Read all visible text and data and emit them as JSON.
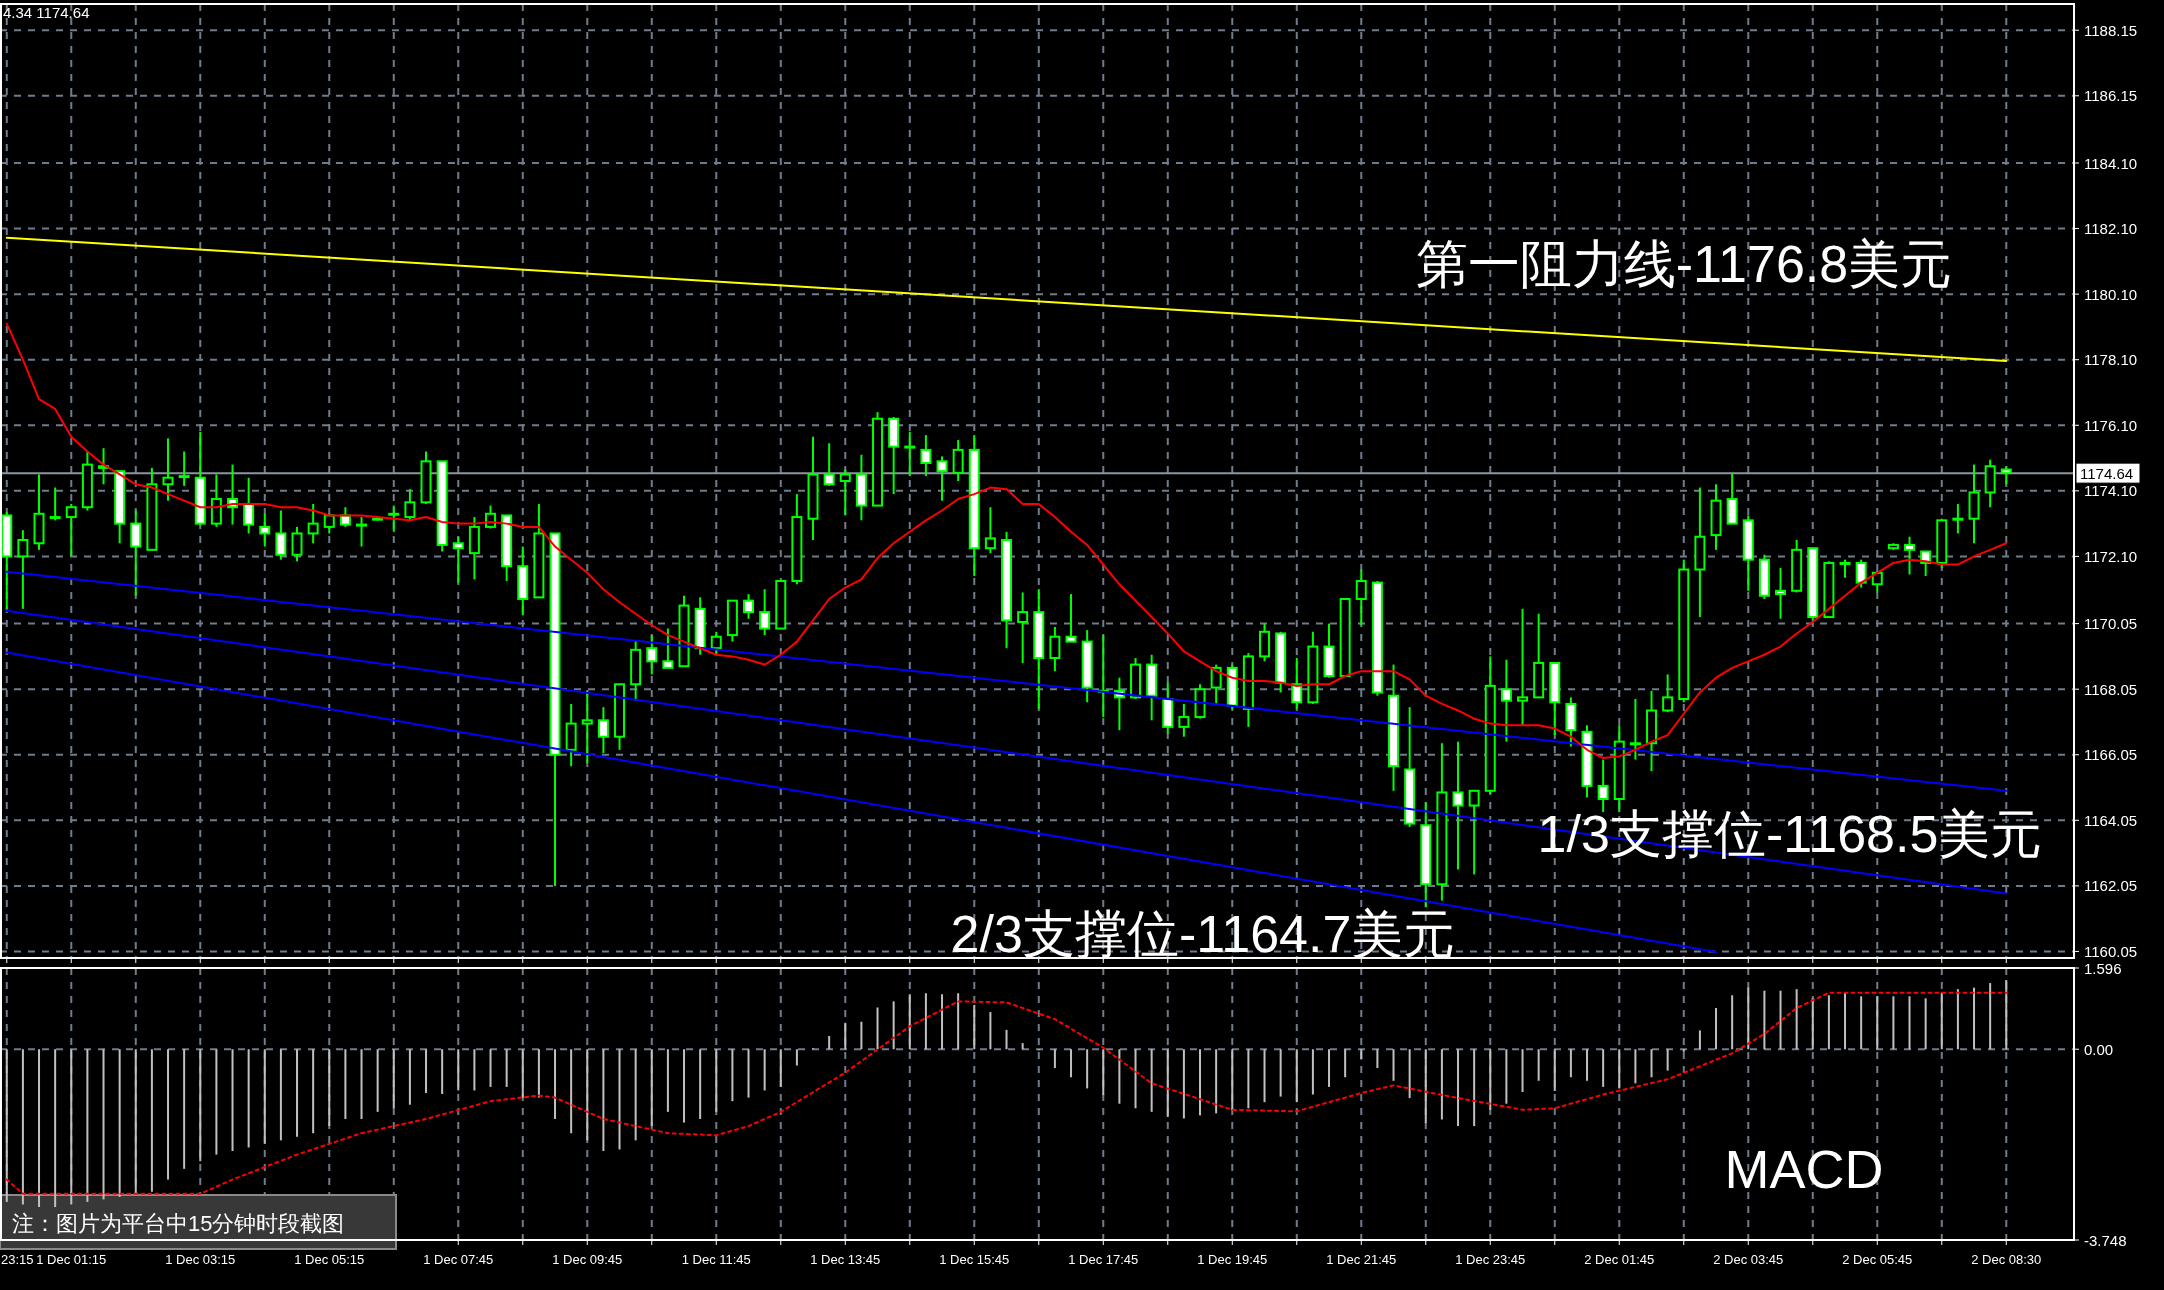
{
  "chart_data": [
    {
      "type": "candlestick",
      "grid": true,
      "categories": [
        null,
        null,
        null,
        null,
        null,
        null,
        null,
        null,
        null,
        null,
        null,
        null,
        null,
        null,
        null,
        null,
        null,
        null,
        null,
        null,
        null,
        null,
        null,
        null,
        null,
        null,
        null,
        null,
        null,
        null,
        null,
        null,
        null,
        null,
        null,
        null,
        null,
        null,
        null,
        null,
        null,
        null,
        null,
        null,
        null,
        null,
        null,
        null,
        null,
        null,
        null,
        null,
        null,
        null,
        null,
        null,
        null,
        null,
        null,
        null,
        null,
        null,
        null,
        null,
        null,
        null,
        null,
        null,
        null,
        null,
        null,
        null,
        null,
        null,
        null,
        null,
        null,
        null,
        null,
        null,
        null,
        null,
        null,
        null,
        null,
        null,
        null,
        null,
        null,
        null,
        null,
        null,
        null,
        null,
        null,
        null,
        null,
        null,
        null,
        null,
        null,
        null,
        null,
        null,
        null,
        null,
        null,
        null,
        null,
        null,
        null,
        null,
        null,
        null,
        null,
        null,
        null,
        null,
        null,
        null,
        null,
        null,
        null,
        null,
        null
      ],
      "ylim": [
        1159.85,
        1188.95
      ],
      "yticks": [
        {
          "value": 1160.05,
          "label": "1160.05"
        },
        {
          "value": 1162.05,
          "label": "1162.05"
        },
        {
          "value": 1164.05,
          "label": "1164.05"
        },
        {
          "value": 1166.05,
          "label": "1166.05"
        },
        {
          "value": 1168.05,
          "label": "1168.05"
        },
        {
          "value": 1170.05,
          "label": "1170.05"
        },
        {
          "value": 1172.1,
          "label": "1172.10"
        },
        {
          "value": 1174.1,
          "label": "1174.10"
        },
        {
          "value": 1176.1,
          "label": "1176.10"
        },
        {
          "value": 1178.1,
          "label": "1178.10"
        },
        {
          "value": 1180.1,
          "label": "1180.10"
        },
        {
          "value": 1182.1,
          "label": "1182.10"
        },
        {
          "value": 1184.1,
          "label": "1184.10"
        },
        {
          "value": 1186.15,
          "label": "1186.15"
        },
        {
          "value": 1188.15,
          "label": "1188.15"
        }
      ],
      "series": [
        {
          "type": "line",
          "color": "#ffff00",
          "values": [
            1181.82,
            null,
            null,
            null,
            null,
            null,
            null,
            null,
            null,
            null,
            null,
            null,
            null,
            null,
            null,
            null,
            null,
            null,
            null,
            null,
            null,
            null,
            null,
            null,
            null,
            null,
            null,
            null,
            null,
            null,
            null,
            null,
            null,
            null,
            null,
            null,
            null,
            null,
            null,
            null,
            null,
            null,
            null,
            null,
            null,
            null,
            null,
            null,
            null,
            null,
            null,
            null,
            null,
            null,
            null,
            null,
            null,
            null,
            null,
            null,
            null,
            null,
            null,
            null,
            null,
            null,
            null,
            null,
            null,
            null,
            null,
            null,
            null,
            null,
            null,
            null,
            null,
            null,
            null,
            null,
            null,
            null,
            null,
            null,
            null,
            null,
            null,
            null,
            null,
            null,
            null,
            null,
            null,
            null,
            null,
            null,
            null,
            null,
            null,
            null,
            null,
            null,
            null,
            null,
            null,
            null,
            null,
            null,
            null,
            null,
            null,
            null,
            null,
            null,
            null,
            null,
            null,
            null,
            null,
            null,
            null,
            null,
            null,
            null,
            1178.06
          ]
        },
        {
          "type": "line",
          "color": "#0000ff",
          "values": [
            1171.63,
            null,
            null,
            null,
            null,
            null,
            null,
            null,
            null,
            null,
            null,
            null,
            null,
            null,
            null,
            null,
            null,
            null,
            null,
            null,
            null,
            null,
            null,
            null,
            null,
            null,
            null,
            null,
            null,
            null,
            null,
            null,
            null,
            null,
            null,
            null,
            null,
            null,
            null,
            null,
            null,
            null,
            null,
            null,
            null,
            null,
            null,
            null,
            null,
            null,
            null,
            null,
            null,
            null,
            null,
            null,
            null,
            null,
            null,
            null,
            null,
            null,
            null,
            null,
            null,
            null,
            null,
            null,
            null,
            null,
            null,
            null,
            null,
            null,
            null,
            null,
            null,
            null,
            null,
            null,
            null,
            null,
            null,
            null,
            null,
            null,
            null,
            null,
            null,
            null,
            null,
            null,
            null,
            null,
            null,
            null,
            null,
            null,
            null,
            null,
            null,
            null,
            null,
            null,
            null,
            null,
            null,
            null,
            null,
            null,
            null,
            null,
            null,
            null,
            null,
            null,
            null,
            null,
            null,
            null,
            null,
            null,
            null,
            null,
            1164.95
          ]
        },
        {
          "type": "line",
          "color": "#0000ff",
          "values": [
            1170.44,
            null,
            null,
            null,
            null,
            null,
            null,
            null,
            null,
            null,
            null,
            null,
            null,
            null,
            null,
            null,
            null,
            null,
            null,
            null,
            null,
            null,
            null,
            null,
            null,
            null,
            null,
            null,
            null,
            null,
            null,
            null,
            null,
            null,
            null,
            null,
            null,
            null,
            null,
            null,
            null,
            null,
            null,
            null,
            null,
            null,
            null,
            null,
            null,
            null,
            null,
            null,
            null,
            null,
            null,
            null,
            null,
            null,
            null,
            null,
            null,
            null,
            null,
            null,
            null,
            null,
            null,
            null,
            null,
            null,
            null,
            null,
            null,
            null,
            null,
            null,
            null,
            null,
            null,
            null,
            null,
            null,
            null,
            null,
            null,
            null,
            null,
            null,
            null,
            null,
            null,
            null,
            null,
            null,
            null,
            null,
            null,
            null,
            null,
            null,
            null,
            null,
            null,
            null,
            null,
            null,
            null,
            null,
            null,
            null,
            null,
            null,
            null,
            null,
            null,
            null,
            null,
            null,
            null,
            null,
            null,
            null,
            null,
            null,
            1161.82
          ]
        },
        {
          "type": "line",
          "color": "#0000ff",
          "values": [
            1169.17,
            null,
            null,
            null,
            null,
            null,
            null,
            null,
            null,
            null,
            null,
            null,
            null,
            null,
            null,
            null,
            null,
            null,
            null,
            null,
            null,
            null,
            null,
            null,
            null,
            null,
            null,
            null,
            null,
            null,
            null,
            null,
            null,
            null,
            null,
            null,
            null,
            null,
            null,
            null,
            null,
            null,
            null,
            null,
            null,
            null,
            null,
            null,
            null,
            null,
            null,
            null,
            null,
            null,
            null,
            null,
            null,
            null,
            null,
            null,
            null,
            null,
            null,
            null,
            null,
            null,
            null,
            null,
            null,
            null,
            null,
            null,
            null,
            null,
            null,
            null,
            null,
            null,
            null,
            null,
            null,
            null,
            null,
            null,
            null,
            null,
            null,
            null,
            null,
            null,
            null,
            null,
            null,
            null,
            null,
            null,
            null,
            null,
            null,
            null,
            null,
            null,
            null,
            null,
            null,
            null,
            1160.03,
            null,
            null,
            null,
            null,
            null,
            null,
            null,
            null,
            null,
            null,
            null,
            null,
            null,
            null,
            null,
            null,
            null,
            null
          ]
        },
        {
          "type": "line",
          "color": "#ff0000",
          "values": [
            1179.2,
            1178.1,
            1176.9,
            1176.6,
            1175.75,
            1175.3,
            1174.9,
            1174.6,
            1174.3,
            1174.2,
            1174.0,
            1173.8,
            1173.6,
            1173.6,
            1173.7,
            1173.7,
            1173.7,
            1173.6,
            1173.6,
            1173.5,
            1173.35,
            1173.35,
            1173.35,
            1173.3,
            1173.25,
            1173.2,
            1173.3,
            1173.15,
            1173.1,
            1173.1,
            1173.15,
            1173.1,
            1173.0,
            1173.0,
            1172.4,
            1172.0,
            1171.6,
            1171.1,
            1170.7,
            1170.35,
            1170.0,
            1169.7,
            1169.5,
            1169.3,
            1169.1,
            1169.05,
            1168.95,
            1168.8,
            1169.1,
            1169.5,
            1170.15,
            1170.8,
            1171.15,
            1171.4,
            1172.05,
            1172.5,
            1172.85,
            1173.2,
            1173.5,
            1173.85,
            1174.0,
            1174.2,
            1174.15,
            1173.7,
            1173.7,
            1173.3,
            1172.85,
            1172.45,
            1171.85,
            1171.25,
            1170.75,
            1170.25,
            1169.75,
            1169.2,
            1168.9,
            1168.6,
            1168.4,
            1168.3,
            1168.3,
            1168.25,
            1168.15,
            1168.2,
            1168.2,
            1168.45,
            1168.6,
            1168.6,
            1168.6,
            1168.35,
            1167.85,
            1167.6,
            1167.4,
            1167.15,
            1167.0,
            1166.95,
            1166.95,
            1166.95,
            1166.85,
            1166.6,
            1166.2,
            1165.95,
            1166.0,
            1166.2,
            1166.45,
            1166.65,
            1167.3,
            1167.95,
            1168.4,
            1168.7,
            1168.9,
            1169.1,
            1169.35,
            1169.75,
            1170.1,
            1170.5,
            1170.9,
            1171.3,
            1171.6,
            1171.9,
            1172.0,
            1171.95,
            1171.85,
            1171.85,
            1172.1,
            1172.3,
            1172.5
          ]
        },
        {
          "color": "#00ff00",
          "ohlc": [
            [
              1173.35,
              1173.45,
              1170.5,
              1172.1
            ],
            [
              1172.1,
              1172.9,
              1170.5,
              1172.6
            ],
            [
              1172.5,
              1174.6,
              1172.3,
              1173.4
            ],
            [
              1173.3,
              1174.2,
              1173.2,
              1173.3
            ],
            [
              1173.3,
              1173.7,
              1172.1,
              1173.6
            ],
            [
              1173.6,
              1175.3,
              1173.5,
              1174.9
            ],
            [
              1174.85,
              1175.4,
              1174.3,
              1174.8
            ],
            [
              1174.7,
              1174.7,
              1172.5,
              1173.1
            ],
            [
              1173.1,
              1173.5,
              1170.9,
              1172.4
            ],
            [
              1172.3,
              1174.8,
              1172.3,
              1174.3
            ],
            [
              1174.3,
              1175.7,
              1173.8,
              1174.5
            ],
            [
              1174.55,
              1175.3,
              1174.25,
              1174.55
            ],
            [
              1174.5,
              1175.9,
              1173.05,
              1173.1
            ],
            [
              1173.1,
              1174.6,
              1173.0,
              1173.85
            ],
            [
              1173.85,
              1174.9,
              1173.07,
              1173.6
            ],
            [
              1173.7,
              1174.5,
              1172.8,
              1173.07
            ],
            [
              1173.0,
              1173.4,
              1172.4,
              1172.8
            ],
            [
              1172.8,
              1173.5,
              1172.0,
              1172.15
            ],
            [
              1172.15,
              1173.0,
              1171.95,
              1172.8
            ],
            [
              1172.8,
              1173.7,
              1172.5,
              1173.1
            ],
            [
              1173.0,
              1173.4,
              1172.8,
              1173.35
            ],
            [
              1173.35,
              1173.6,
              1173.0,
              1173.07
            ],
            [
              1173.07,
              1173.3,
              1172.4,
              1173.07
            ],
            [
              1173.25,
              1173.3,
              1173.2,
              1173.25
            ],
            [
              1173.4,
              1173.65,
              1172.85,
              1173.4
            ],
            [
              1173.3,
              1174.15,
              1173.2,
              1173.75
            ],
            [
              1173.75,
              1175.3,
              1173.7,
              1175.0
            ],
            [
              1175.0,
              1175.0,
              1172.25,
              1172.45
            ],
            [
              1172.5,
              1172.7,
              1171.3,
              1172.35
            ],
            [
              1172.2,
              1173.3,
              1171.4,
              1173.0
            ],
            [
              1173.0,
              1173.65,
              1172.95,
              1173.4
            ],
            [
              1173.35,
              1173.35,
              1171.35,
              1171.8
            ],
            [
              1171.8,
              1172.4,
              1170.3,
              1170.8
            ],
            [
              1170.85,
              1173.7,
              1170.85,
              1172.8
            ],
            [
              1172.8,
              1172.8,
              1162.05,
              1166.05
            ],
            [
              1166.2,
              1167.6,
              1165.7,
              1167.0
            ],
            [
              1167.0,
              1168.0,
              1165.8,
              1167.1
            ],
            [
              1167.1,
              1167.5,
              1166.1,
              1166.6
            ],
            [
              1166.6,
              1168.2,
              1166.2,
              1168.2
            ],
            [
              1168.2,
              1169.55,
              1167.7,
              1169.25
            ],
            [
              1169.3,
              1169.7,
              1168.5,
              1168.9
            ],
            [
              1168.9,
              1169.9,
              1168.7,
              1168.7
            ],
            [
              1168.75,
              1170.9,
              1168.75,
              1170.6
            ],
            [
              1170.5,
              1170.85,
              1169.1,
              1169.3
            ],
            [
              1169.3,
              1169.8,
              1169.1,
              1169.65
            ],
            [
              1169.7,
              1170.75,
              1169.5,
              1170.75
            ],
            [
              1170.75,
              1170.95,
              1170.2,
              1170.4
            ],
            [
              1170.4,
              1171.1,
              1169.7,
              1169.9
            ],
            [
              1169.9,
              1171.35,
              1169.9,
              1171.35
            ],
            [
              1171.35,
              1174.0,
              1171.25,
              1173.3
            ],
            [
              1173.25,
              1175.75,
              1172.6,
              1174.6
            ],
            [
              1174.6,
              1175.55,
              1174.25,
              1174.3
            ],
            [
              1174.4,
              1174.75,
              1173.35,
              1174.6
            ],
            [
              1174.6,
              1175.2,
              1173.2,
              1173.65
            ],
            [
              1173.65,
              1176.5,
              1173.65,
              1176.3
            ],
            [
              1176.3,
              1176.35,
              1174.0,
              1175.45
            ],
            [
              1175.45,
              1175.9,
              1174.55,
              1175.45
            ],
            [
              1175.35,
              1175.8,
              1174.55,
              1174.95
            ],
            [
              1175.0,
              1175.15,
              1173.8,
              1174.7
            ],
            [
              1174.65,
              1175.65,
              1174.4,
              1175.35
            ],
            [
              1175.35,
              1175.8,
              1171.5,
              1172.35
            ],
            [
              1172.35,
              1173.6,
              1172.2,
              1172.65
            ],
            [
              1172.6,
              1172.85,
              1169.3,
              1170.15
            ],
            [
              1170.1,
              1171.0,
              1168.85,
              1170.4
            ],
            [
              1170.4,
              1171.1,
              1167.45,
              1169.0
            ],
            [
              1169.0,
              1169.95,
              1168.6,
              1169.65
            ],
            [
              1169.65,
              1170.95,
              1169.5,
              1169.5
            ],
            [
              1169.5,
              1169.85,
              1167.65,
              1168.1
            ],
            [
              1168.0,
              1169.7,
              1167.2,
              1168.0
            ],
            [
              1168.0,
              1168.4,
              1166.8,
              1167.8
            ],
            [
              1167.8,
              1169.0,
              1167.75,
              1168.8
            ],
            [
              1168.8,
              1169.1,
              1167.1,
              1167.85
            ],
            [
              1167.75,
              1168.25,
              1166.7,
              1166.9
            ],
            [
              1166.9,
              1167.6,
              1166.6,
              1167.2
            ],
            [
              1167.2,
              1168.2,
              1167.15,
              1168.05
            ],
            [
              1168.1,
              1168.8,
              1167.6,
              1168.7
            ],
            [
              1168.7,
              1168.8,
              1167.45,
              1167.55
            ],
            [
              1167.45,
              1169.15,
              1166.9,
              1169.05
            ],
            [
              1169.05,
              1170.05,
              1168.9,
              1169.8
            ],
            [
              1169.75,
              1169.8,
              1167.95,
              1168.25
            ],
            [
              1168.2,
              1169.0,
              1167.45,
              1167.65
            ],
            [
              1167.65,
              1169.8,
              1167.6,
              1169.35
            ],
            [
              1169.35,
              1170.05,
              1168.4,
              1168.45
            ],
            [
              1168.45,
              1170.8,
              1168.45,
              1170.8
            ],
            [
              1170.8,
              1171.7,
              1170.0,
              1171.35
            ],
            [
              1171.3,
              1171.35,
              1167.85,
              1167.95
            ],
            [
              1167.85,
              1168.8,
              1164.95,
              1165.7
            ],
            [
              1165.6,
              1167.5,
              1163.85,
              1163.95
            ],
            [
              1163.9,
              1164.6,
              1161.4,
              1162.1
            ],
            [
              1162.1,
              1166.4,
              1161.6,
              1164.9
            ],
            [
              1164.9,
              1166.45,
              1162.55,
              1164.5
            ],
            [
              1164.5,
              1164.95,
              1162.4,
              1164.95
            ],
            [
              1164.95,
              1169.05,
              1164.85,
              1168.15
            ],
            [
              1168.05,
              1168.95,
              1166.45,
              1167.7
            ],
            [
              1167.7,
              1170.5,
              1166.95,
              1167.8
            ],
            [
              1167.8,
              1170.35,
              1167.8,
              1168.85
            ],
            [
              1168.85,
              1168.85,
              1166.65,
              1167.65
            ],
            [
              1167.6,
              1167.8,
              1166.3,
              1166.8
            ],
            [
              1166.75,
              1166.95,
              1164.75,
              1165.1
            ],
            [
              1165.1,
              1165.9,
              1164.3,
              1164.7
            ],
            [
              1164.7,
              1166.95,
              1164.3,
              1166.45
            ],
            [
              1166.4,
              1167.75,
              1165.9,
              1166.4
            ],
            [
              1166.4,
              1168.0,
              1165.55,
              1167.4
            ],
            [
              1167.4,
              1168.5,
              1167.35,
              1167.8
            ],
            [
              1167.75,
              1172.0,
              1167.65,
              1171.7
            ],
            [
              1171.7,
              1174.2,
              1170.25,
              1172.7
            ],
            [
              1172.75,
              1174.3,
              1172.3,
              1173.8
            ],
            [
              1173.85,
              1174.65,
              1173.1,
              1173.1
            ],
            [
              1173.2,
              1173.35,
              1171.05,
              1172.0
            ],
            [
              1172.0,
              1172.15,
              1170.8,
              1170.9
            ],
            [
              1171.05,
              1171.75,
              1170.2,
              1170.95
            ],
            [
              1171.05,
              1172.6,
              1171.0,
              1172.3
            ],
            [
              1172.35,
              1172.35,
              1170.15,
              1170.25
            ],
            [
              1170.25,
              1171.95,
              1170.25,
              1171.9
            ],
            [
              1171.9,
              1172.0,
              1171.45,
              1171.9
            ],
            [
              1171.9,
              1172.0,
              1171.15,
              1171.3
            ],
            [
              1171.25,
              1171.65,
              1171.0,
              1171.6
            ],
            [
              1172.35,
              1172.5,
              1172.3,
              1172.45
            ],
            [
              1172.45,
              1172.7,
              1171.55,
              1172.3
            ],
            [
              1172.25,
              1172.25,
              1171.5,
              1171.9
            ],
            [
              1171.9,
              1173.25,
              1171.75,
              1173.2
            ],
            [
              1173.25,
              1173.7,
              1172.8,
              1173.25
            ],
            [
              1173.25,
              1174.9,
              1172.5,
              1174.05
            ],
            [
              1174.05,
              1175.05,
              1173.6,
              1174.85
            ],
            [
              1174.75,
              1174.85,
              1174.3,
              1174.64
            ]
          ]
        }
      ],
      "ref_lines": [
        {
          "axis": "y",
          "value": 1174.64,
          "label": "1174.64",
          "color": "#8c96a0"
        }
      ],
      "annotations": [
        "4.34 1174.64",
        "第一阻力线-1176.8美元",
        "1/3支撑位-1168.5美元",
        "2/3支撑位-1164.7美元"
      ]
    },
    {
      "type": "bar",
      "grid": true,
      "categories": [
        null,
        null,
        null,
        null,
        "1 Dec 01:15",
        null,
        null,
        null,
        null,
        null,
        null,
        null,
        "1 Dec 03:15",
        null,
        null,
        null,
        null,
        null,
        null,
        null,
        "1 Dec 05:15",
        null,
        null,
        null,
        null,
        null,
        null,
        null,
        "1 Dec 07:45",
        null,
        null,
        null,
        null,
        null,
        null,
        null,
        "1 Dec 09:45",
        null,
        null,
        null,
        null,
        null,
        null,
        null,
        "1 Dec 11:45",
        null,
        null,
        null,
        null,
        null,
        null,
        null,
        "1 Dec 13:45",
        null,
        null,
        null,
        null,
        null,
        null,
        null,
        "1 Dec 15:45",
        null,
        null,
        null,
        null,
        null,
        null,
        null,
        "1 Dec 17:45",
        null,
        null,
        null,
        null,
        null,
        null,
        null,
        "1 Dec 19:45",
        null,
        null,
        null,
        null,
        null,
        null,
        null,
        "1 Dec 21:45",
        null,
        null,
        null,
        null,
        null,
        null,
        null,
        "1 Dec 23:45",
        null,
        null,
        null,
        null,
        null,
        null,
        null,
        "2 Dec 01:45",
        null,
        null,
        null,
        null,
        null,
        null,
        null,
        "2 Dec 03:45",
        null,
        null,
        null,
        null,
        null,
        null,
        null,
        "2 Dec 05:45",
        null,
        null,
        null,
        null,
        null,
        null,
        null,
        "2 Dec 08:30"
      ],
      "ylim": [
        -3.748,
        1.596
      ],
      "yticks": [
        {
          "value": 1.596,
          "label": "1.596"
        },
        {
          "value": 0,
          "label": "0.00"
        },
        {
          "value": -3.748,
          "label": "-3.748"
        }
      ],
      "series": [
        {
          "color": "#c0c0c0",
          "values": [
            -3.0,
            -3.05,
            -3.1,
            -3.1,
            -3.05,
            -3.0,
            -2.95,
            -2.9,
            -2.85,
            -2.8,
            -2.56,
            -2.35,
            -2.2,
            -2.07,
            -2.0,
            -1.93,
            -1.86,
            -1.79,
            -1.72,
            -1.65,
            -1.51,
            -1.37,
            -1.37,
            -1.23,
            -1.16,
            -1.09,
            -0.86,
            -0.88,
            -0.81,
            -0.81,
            -0.74,
            -0.74,
            -0.95,
            -0.95,
            -1.37,
            -1.65,
            -1.79,
            -2.0,
            -1.97,
            -1.79,
            -1.51,
            -1.23,
            -1.44,
            -1.37,
            -1.23,
            -1.02,
            -0.95,
            -0.81,
            -0.74,
            -0.32,
            0.02,
            0.26,
            0.52,
            0.54,
            0.82,
            0.94,
            1.08,
            1.1,
            1.08,
            1.1,
            0.87,
            0.73,
            0.38,
            0.12,
            -0.02,
            -0.37,
            -0.55,
            -0.77,
            -0.9,
            -1.07,
            -1.16,
            -1.23,
            -1.33,
            -1.36,
            -1.3,
            -1.26,
            -1.19,
            -1.16,
            -1.04,
            -0.93,
            -1.04,
            -0.89,
            -0.74,
            -0.55,
            -0.2,
            -0.37,
            -0.62,
            -0.96,
            -1.45,
            -1.38,
            -1.51,
            -1.51,
            -1.19,
            -1.07,
            -0.84,
            -0.62,
            -0.82,
            -0.55,
            -0.62,
            -0.74,
            -0.77,
            -0.67,
            -0.55,
            -0.42,
            -0.05,
            0.37,
            0.81,
            1.06,
            1.21,
            1.15,
            1.15,
            1.18,
            1.0,
            1.06,
            1.11,
            1.04,
            1.04,
            1.04,
            1.04,
            1.0,
            1.11,
            1.18,
            1.21,
            1.3,
            1.36
          ]
        },
        {
          "type": "line",
          "color": "#ff0000",
          "line_style": "dotted",
          "values": [
            -2.56,
            -2.84,
            null,
            null,
            null,
            null,
            null,
            null,
            null,
            null,
            null,
            null,
            -2.84,
            null,
            -2.56,
            null,
            null,
            null,
            -2.07,
            null,
            null,
            null,
            -1.65,
            null,
            null,
            null,
            -1.37,
            null,
            null,
            null,
            -1.02,
            null,
            null,
            -0.91,
            -0.95,
            null,
            null,
            -1.37,
            null,
            null,
            null,
            -1.65,
            null,
            null,
            -1.69,
            null,
            -1.51,
            null,
            -1.23,
            null,
            null,
            null,
            -0.46,
            null,
            null,
            null,
            0.45,
            null,
            null,
            0.94,
            null,
            null,
            0.92,
            null,
            null,
            0.59,
            null,
            null,
            0.03,
            null,
            null,
            -0.67,
            null,
            null,
            null,
            null,
            -1.19,
            null,
            null,
            null,
            -1.22,
            null,
            null,
            null,
            -0.86,
            null,
            -0.71,
            null,
            null,
            null,
            -0.96,
            null,
            null,
            null,
            -1.19,
            null,
            -1.16,
            null,
            null,
            -0.89,
            null,
            null,
            null,
            -0.59,
            null,
            null,
            null,
            -0.08,
            null,
            0.3,
            null,
            0.81,
            null,
            1.11,
            null,
            null,
            null,
            null,
            1.11,
            null,
            null,
            null,
            null,
            null,
            1.11
          ]
        }
      ],
      "annotations": [
        "MACD",
        "注：图片为平台中15分钟时段截图",
        "23:15"
      ]
    }
  ]
}
